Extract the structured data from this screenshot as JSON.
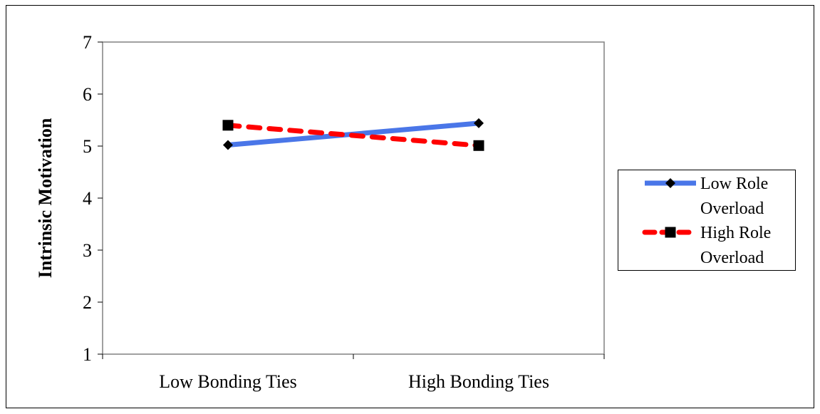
{
  "chart_data": {
    "type": "line",
    "ylabel": "Intrinsic Motivation",
    "xlabel": "",
    "categories": [
      "Low Bonding Ties",
      "High Bonding Ties"
    ],
    "ylim": [
      1,
      7
    ],
    "yticks": [
      "1",
      "2",
      "3",
      "4",
      "5",
      "6",
      "7"
    ],
    "grid": false,
    "legend_position": "right",
    "series": [
      {
        "name_lines": [
          "Low Role",
          "Overload"
        ],
        "values": [
          5.02,
          5.44
        ],
        "color": "#4a76e8",
        "dash": "solid",
        "marker": "diamond"
      },
      {
        "name_lines": [
          "High Role",
          "Overload"
        ],
        "values": [
          5.4,
          5.01
        ],
        "color": "#ff0000",
        "dash": "dashed",
        "marker": "square"
      }
    ]
  }
}
